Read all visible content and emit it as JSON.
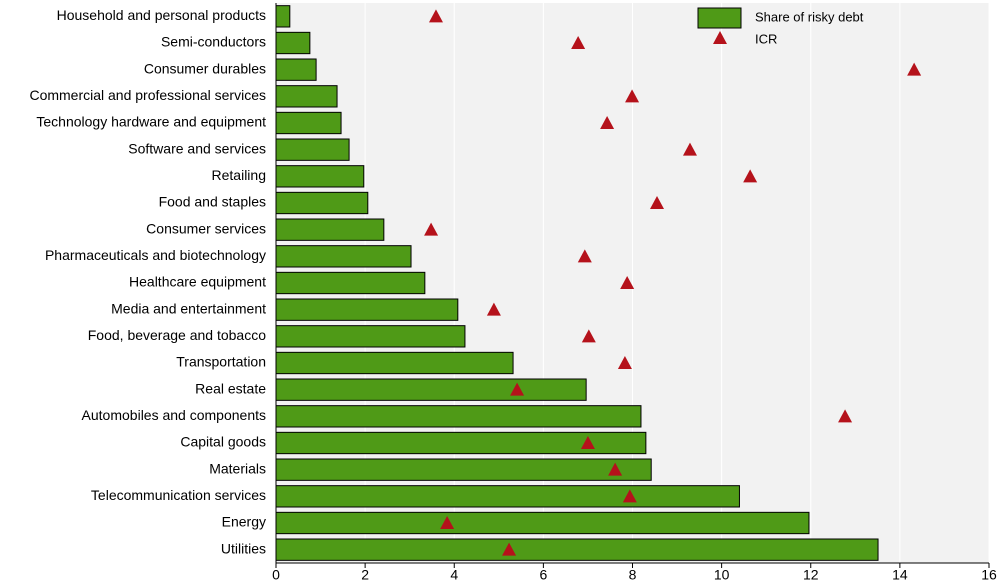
{
  "chart_data": {
    "type": "bar",
    "categories": [
      "Household and personal products",
      "Semi-conductors",
      "Consumer durables",
      "Commercial and professional services",
      "Technology hardware and equipment",
      "Software and services",
      "Retailing",
      "Food and staples",
      "Consumer services",
      "Pharmaceuticals and biotechnology",
      "Healthcare equipment",
      "Media and entertainment",
      "Food, beverage and tobacco",
      "Transportation",
      "Real estate",
      "Automobiles and components",
      "Capital goods",
      "Materials",
      "Telecommunication services",
      "Energy",
      "Utilities"
    ],
    "series": [
      {
        "name": "Share of risky debt",
        "color": "#4f9a17",
        "values": [
          0.31,
          0.76,
          0.9,
          1.37,
          1.46,
          1.64,
          1.97,
          2.06,
          2.42,
          3.03,
          3.34,
          4.08,
          4.24,
          5.32,
          6.96,
          8.19,
          8.3,
          8.42,
          10.4,
          11.96,
          13.51
        ]
      },
      {
        "name": "ICR",
        "color": "#b5121b",
        "values": [
          3.59,
          6.78,
          14.32,
          7.99,
          7.43,
          9.29,
          10.64,
          8.55,
          3.48,
          6.93,
          7.88,
          4.89,
          7.02,
          7.83,
          5.41,
          12.77,
          7.0,
          7.61,
          7.94,
          3.84,
          5.23
        ]
      }
    ],
    "xlim": [
      0,
      16
    ],
    "xticks": [
      0,
      2,
      4,
      6,
      8,
      10,
      12,
      14,
      16
    ],
    "grid": true
  }
}
